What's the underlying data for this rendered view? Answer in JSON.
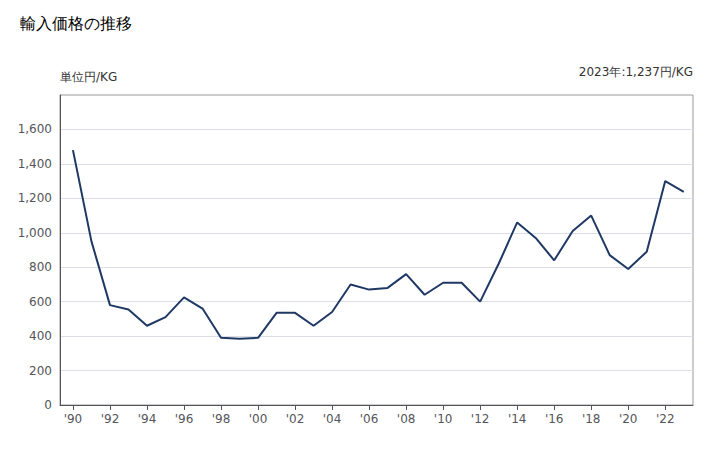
{
  "chart_data": {
    "type": "line",
    "title": "輸入価格の推移",
    "ylabel": "単位円/KG",
    "annotation": "2023年:1,237円/KG",
    "color": "#1f3864",
    "x": [
      1990,
      1991,
      1992,
      1993,
      1994,
      1995,
      1996,
      1997,
      1998,
      1999,
      2000,
      2001,
      2002,
      2003,
      2004,
      2005,
      2006,
      2007,
      2008,
      2009,
      2010,
      2011,
      2012,
      2013,
      2014,
      2015,
      2016,
      2017,
      2018,
      2019,
      2020,
      2021,
      2022,
      2023
    ],
    "values": [
      1480,
      950,
      580,
      555,
      460,
      510,
      625,
      560,
      390,
      385,
      390,
      535,
      535,
      460,
      540,
      700,
      670,
      680,
      760,
      640,
      710,
      710,
      600,
      820,
      1060,
      970,
      840,
      1010,
      1100,
      870,
      790,
      890,
      1300,
      1237
    ],
    "xlim": [
      1989.3,
      2023.5
    ],
    "xticks": [
      {
        "value": 1990,
        "label": "'90"
      },
      {
        "value": 1992,
        "label": "'92"
      },
      {
        "value": 1994,
        "label": "'94"
      },
      {
        "value": 1996,
        "label": "'96"
      },
      {
        "value": 1998,
        "label": "'98"
      },
      {
        "value": 2000,
        "label": "'00"
      },
      {
        "value": 2002,
        "label": "'02"
      },
      {
        "value": 2004,
        "label": "'04"
      },
      {
        "value": 2006,
        "label": "'06"
      },
      {
        "value": 2008,
        "label": "'08"
      },
      {
        "value": 2010,
        "label": "'10"
      },
      {
        "value": 2012,
        "label": "'12"
      },
      {
        "value": 2014,
        "label": "'14"
      },
      {
        "value": 2016,
        "label": "'16"
      },
      {
        "value": 2018,
        "label": "'18"
      },
      {
        "value": 2020,
        "label": "'20"
      },
      {
        "value": 2022,
        "label": "'22"
      }
    ],
    "ylim": [
      0,
      1800
    ],
    "yticks": [
      0,
      200,
      400,
      600,
      800,
      {
        "value": 1000,
        "label": "1,000"
      },
      {
        "value": 1200,
        "label": "1,200"
      },
      {
        "value": 1400,
        "label": "1,400"
      },
      {
        "value": 1600,
        "label": "1,600"
      }
    ],
    "grid": true
  }
}
